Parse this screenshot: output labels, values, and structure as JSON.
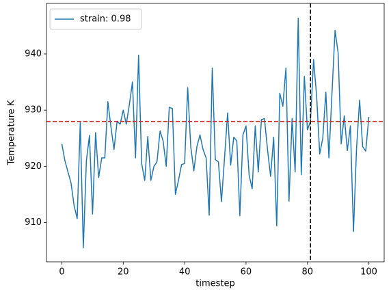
{
  "chart_data": {
    "type": "line",
    "xlabel": "timestep",
    "ylabel": "Temperature K",
    "x": [
      0,
      1,
      2,
      3,
      4,
      5,
      6,
      7,
      8,
      9,
      10,
      11,
      12,
      13,
      14,
      15,
      16,
      17,
      18,
      19,
      20,
      21,
      22,
      23,
      24,
      25,
      26,
      27,
      28,
      29,
      30,
      31,
      32,
      33,
      34,
      35,
      36,
      37,
      38,
      39,
      40,
      41,
      42,
      43,
      44,
      45,
      46,
      47,
      48,
      49,
      50,
      51,
      52,
      53,
      54,
      55,
      56,
      57,
      58,
      59,
      60,
      61,
      62,
      63,
      64,
      65,
      66,
      67,
      68,
      69,
      70,
      71,
      72,
      73,
      74,
      75,
      76,
      77,
      78,
      79,
      80,
      81,
      82,
      83,
      84,
      85,
      86,
      87,
      88,
      89,
      90,
      91,
      92,
      93,
      94,
      95,
      96,
      97,
      98,
      99,
      100
    ],
    "series": [
      {
        "name": "strain: 0.98",
        "color": "#1f77b4",
        "values": [
          924,
          921,
          919,
          917,
          913,
          910.7,
          927.8,
          905.5,
          921,
          925.5,
          911.5,
          926,
          918,
          921.5,
          921.5,
          931.5,
          927,
          923,
          928,
          927.5,
          930,
          927.5,
          931,
          935,
          921.5,
          939.8,
          920.5,
          917.5,
          925.3,
          917.5,
          920,
          920.8,
          926.3,
          924.5,
          920,
          930.5,
          930.3,
          915,
          917.5,
          920.3,
          920.5,
          934,
          923.5,
          919.2,
          923.5,
          925.6,
          923,
          921.5,
          911.3,
          937.5,
          921.2,
          920.8,
          913.7,
          921.5,
          929.5,
          920.2,
          925.2,
          924.5,
          911.2,
          925.6,
          927.2,
          918.5,
          916,
          927.2,
          919,
          928.3,
          928.5,
          923,
          918.2,
          925.2,
          909.4,
          933,
          930.7,
          937.5,
          913.8,
          928.5,
          919,
          946.4,
          918.5,
          936,
          926.5,
          928,
          939,
          932.5,
          922.2,
          925,
          933.2,
          921.5,
          933,
          944.2,
          940.2,
          924,
          929,
          922.8,
          927.2,
          908.4,
          923.2,
          931.8,
          923.5,
          922.7,
          928.8
        ]
      }
    ],
    "hline": {
      "value": 928,
      "color": "#d62728"
    },
    "vline": {
      "value": 81,
      "color": "#000000"
    },
    "xlim": [
      -5,
      105
    ],
    "ylim": [
      903,
      949
    ],
    "xticks": [
      0,
      20,
      40,
      60,
      80,
      100
    ],
    "yticks": [
      910,
      920,
      930,
      940
    ],
    "grid": false,
    "legend": "upper-left"
  }
}
